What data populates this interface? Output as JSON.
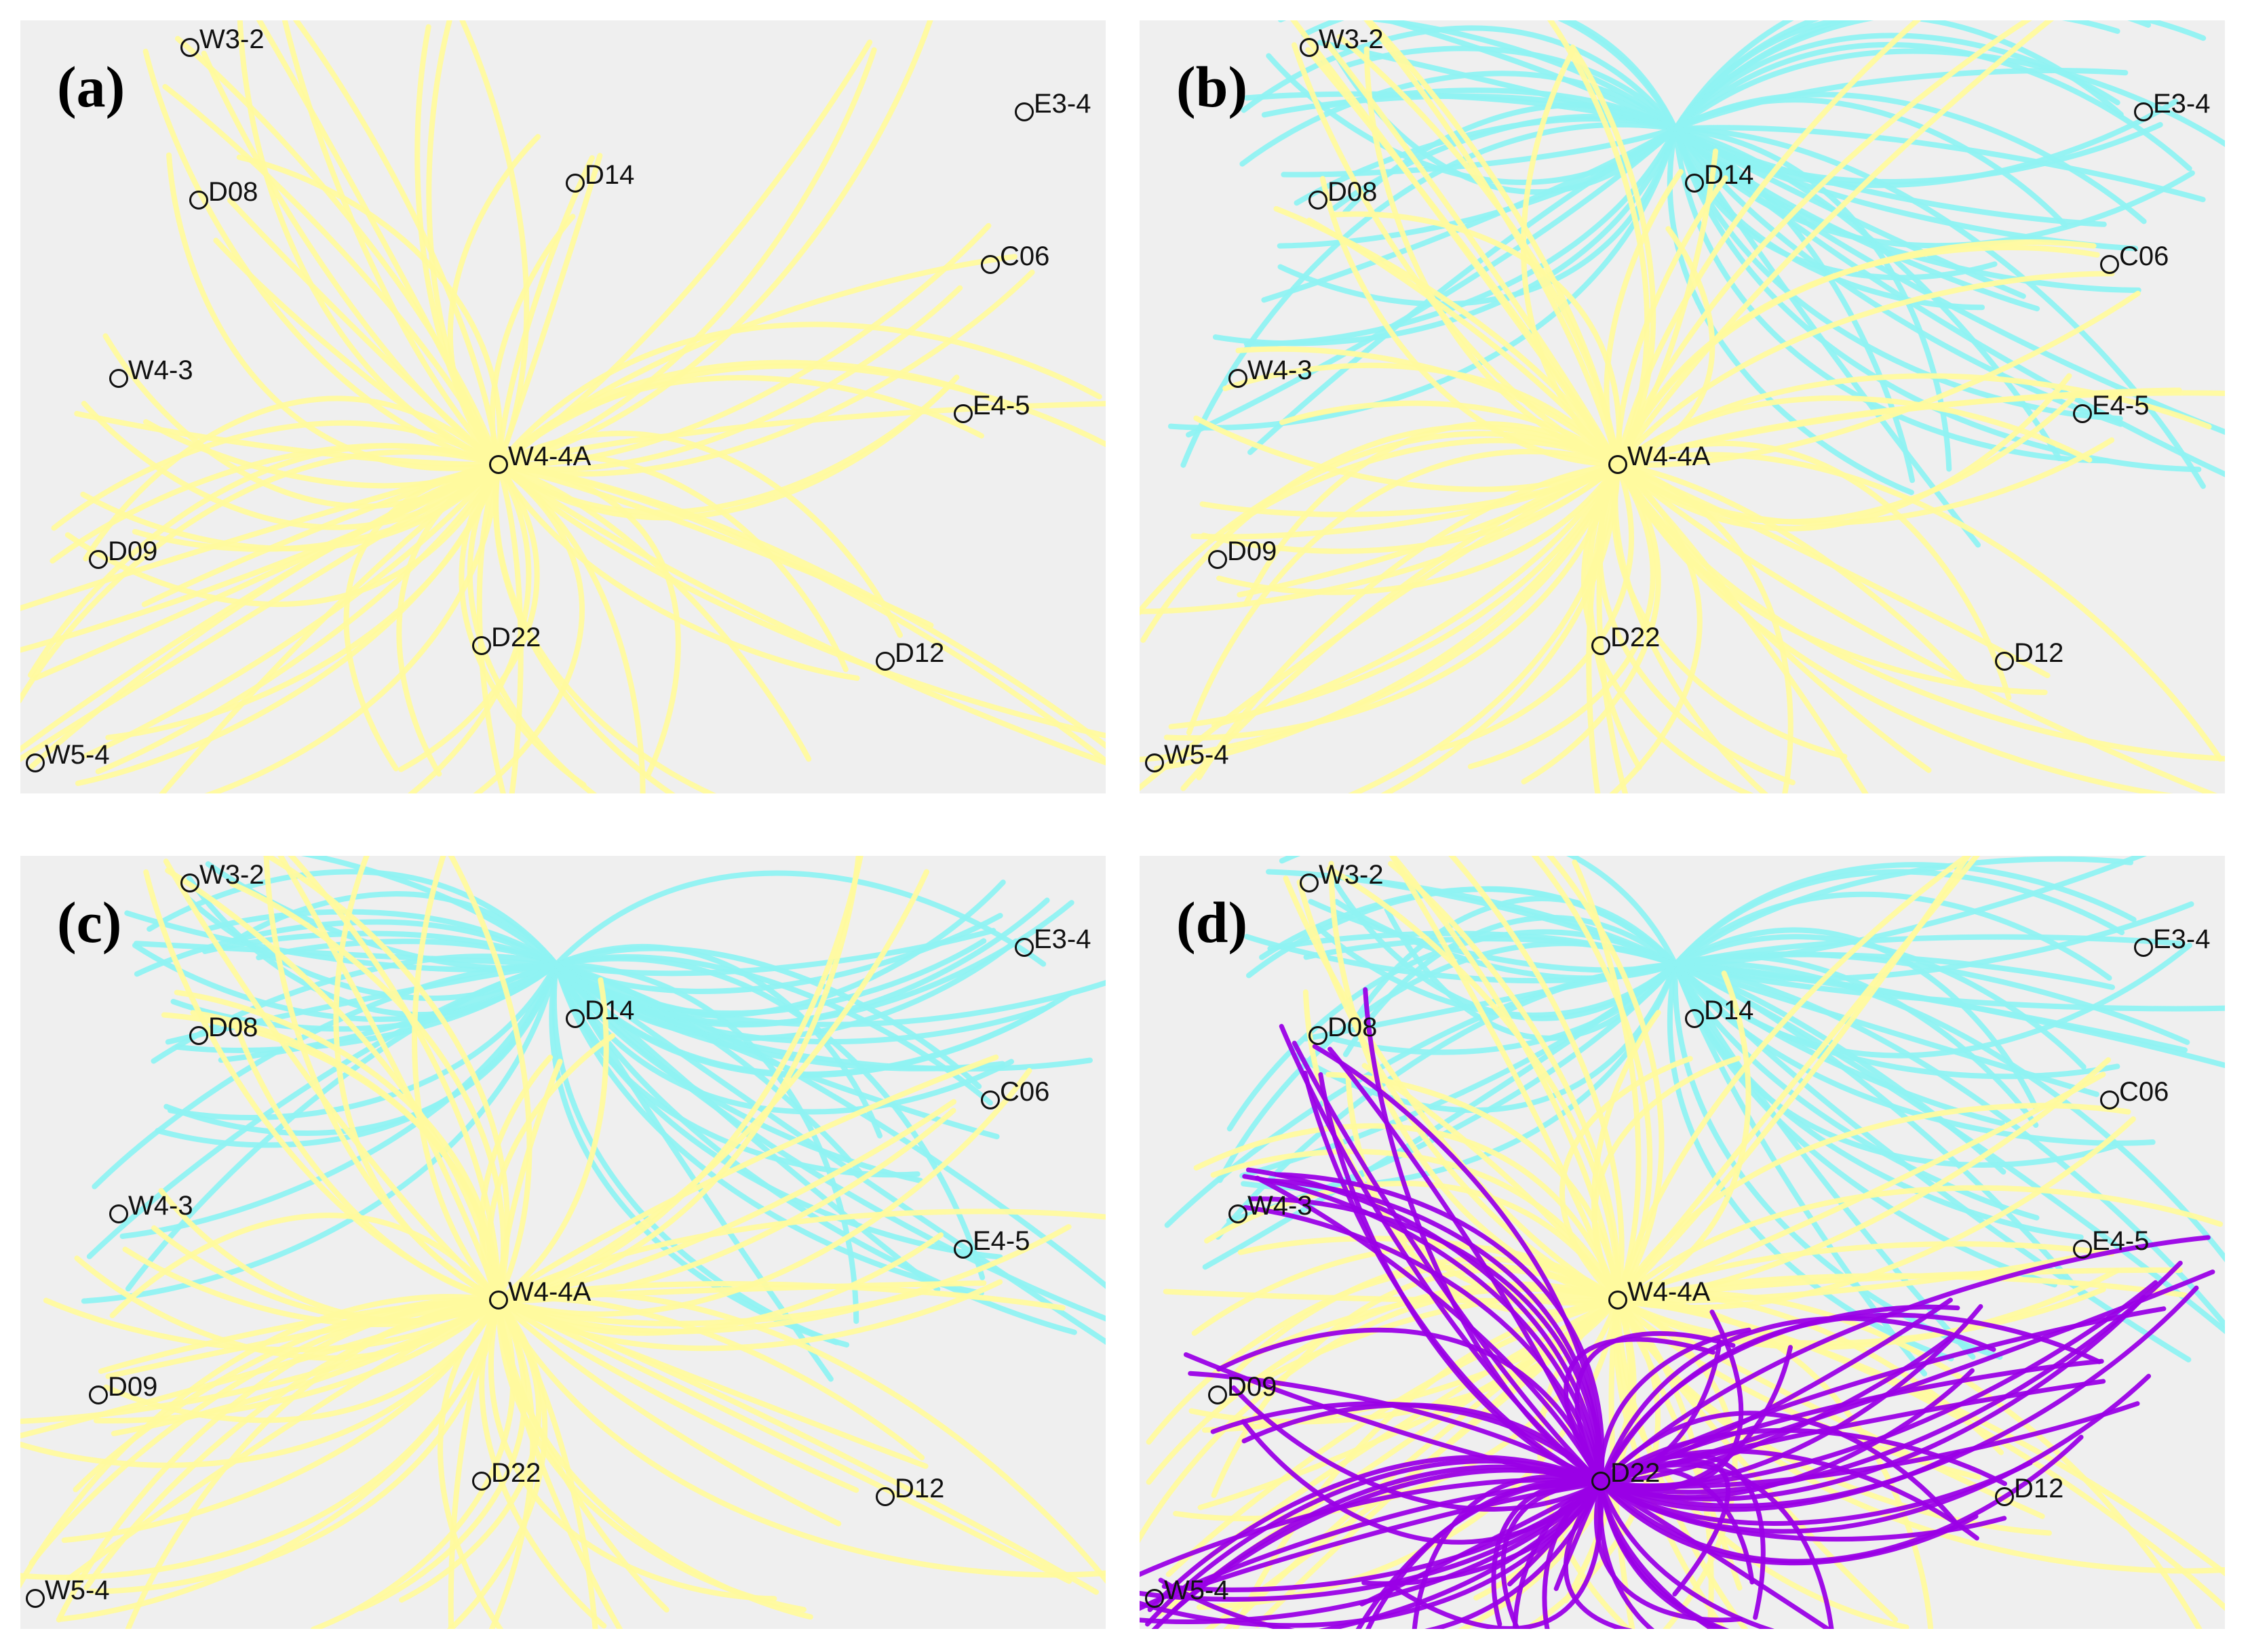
{
  "panels": [
    {
      "id": "a",
      "label": "(a)",
      "groups": [
        "yellow"
      ]
    },
    {
      "id": "b",
      "label": "(b)",
      "groups": [
        "yellow",
        "cyan"
      ]
    },
    {
      "id": "c",
      "label": "(c)",
      "groups": [
        "yellow",
        "cyan"
      ]
    },
    {
      "id": "d",
      "label": "(d)",
      "groups": [
        "yellow",
        "cyan",
        "purple"
      ]
    }
  ],
  "stations": [
    {
      "name": "W3-2"
    },
    {
      "name": "E3-4"
    },
    {
      "name": "D08"
    },
    {
      "name": "D14"
    },
    {
      "name": "C06"
    },
    {
      "name": "W4-3"
    },
    {
      "name": "E4-5"
    },
    {
      "name": "W4-4A"
    },
    {
      "name": "D09"
    },
    {
      "name": "D22"
    },
    {
      "name": "D12"
    },
    {
      "name": "W5-4"
    }
  ],
  "colors": {
    "background": "#efefef",
    "yellow": "#fffa9e",
    "cyan": "#8ff2f2",
    "purple": "#9a00e6",
    "marker": "#111111"
  }
}
